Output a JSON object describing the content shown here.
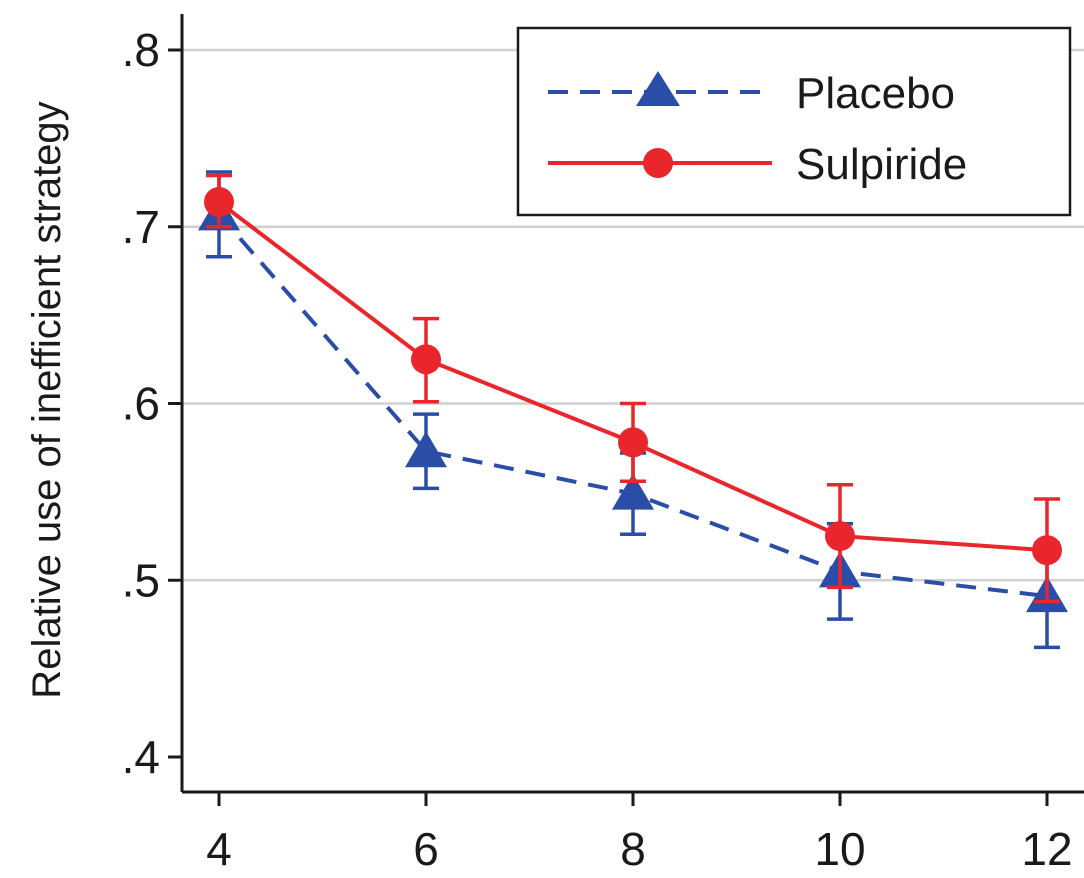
{
  "chart_data": {
    "type": "line",
    "ylabel": "Relative use of inefficient strategy",
    "x": [
      4,
      6,
      8,
      10,
      12
    ],
    "x_ticks": [
      "4",
      "6",
      "8",
      "10",
      "12"
    ],
    "y_ticks": [
      ".4",
      ".5",
      ".6",
      ".7",
      ".8"
    ],
    "y_tick_values": [
      0.4,
      0.5,
      0.6,
      0.7,
      0.8
    ],
    "ylim": [
      0.4,
      0.8
    ],
    "grid": "horizontal",
    "legend_position": "top-right",
    "series": [
      {
        "name": "Placebo",
        "color": "#2a4ea8",
        "marker": "triangle",
        "line_style": "dashed",
        "values": [
          0.707,
          0.573,
          0.549,
          0.505,
          0.491
        ],
        "error_low": [
          0.683,
          0.552,
          0.526,
          0.478,
          0.462
        ],
        "error_high": [
          0.731,
          0.594,
          0.572,
          0.532,
          0.521
        ]
      },
      {
        "name": "Sulpiride",
        "color": "#e8262b",
        "marker": "circle",
        "line_style": "solid",
        "values": [
          0.714,
          0.625,
          0.578,
          0.525,
          0.517
        ],
        "error_low": [
          0.7,
          0.601,
          0.556,
          0.496,
          0.488
        ],
        "error_high": [
          0.729,
          0.648,
          0.6,
          0.554,
          0.546
        ]
      }
    ]
  }
}
